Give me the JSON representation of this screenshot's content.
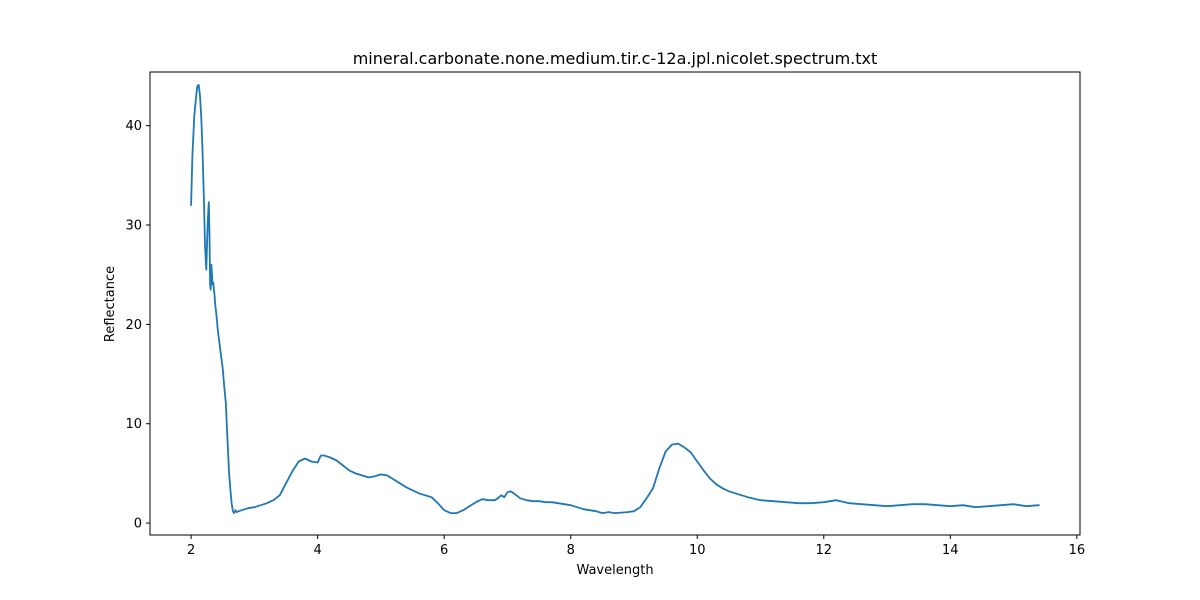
{
  "chart_data": {
    "type": "line",
    "title": "mineral.carbonate.none.medium.tir.c-12a.jpl.nicolet.spectrum.txt",
    "xlabel": "Wavelength",
    "ylabel": "Reflectance",
    "xlim": [
      1.35,
      16.05
    ],
    "ylim": [
      -1.2,
      45.4
    ],
    "x_ticks": [
      2,
      4,
      6,
      8,
      10,
      12,
      14,
      16
    ],
    "x_tick_labels": [
      "2",
      "4",
      "6",
      "8",
      "10",
      "12",
      "14",
      "16"
    ],
    "y_ticks": [
      0,
      10,
      20,
      30,
      40
    ],
    "y_tick_labels": [
      "0",
      "10",
      "20",
      "30",
      "40"
    ],
    "grid": false,
    "line_color": "#1f77b4",
    "series": [
      {
        "x": [
          2.0,
          2.02,
          2.05,
          2.08,
          2.1,
          2.12,
          2.14,
          2.16,
          2.18,
          2.2,
          2.22,
          2.24,
          2.26,
          2.28,
          2.29,
          2.3,
          2.31,
          2.32,
          2.33,
          2.34,
          2.35,
          2.36,
          2.37,
          2.38,
          2.39,
          2.4,
          2.42,
          2.45,
          2.48,
          2.5,
          2.52,
          2.55,
          2.57,
          2.6,
          2.62,
          2.64,
          2.66,
          2.68,
          2.7,
          2.72,
          2.75,
          2.8,
          2.85,
          2.9,
          3.0,
          3.1,
          3.2,
          3.3,
          3.4,
          3.5,
          3.6,
          3.7,
          3.8,
          3.9,
          4.0,
          4.05,
          4.1,
          4.2,
          4.3,
          4.4,
          4.5,
          4.6,
          4.7,
          4.8,
          4.9,
          5.0,
          5.1,
          5.2,
          5.3,
          5.4,
          5.5,
          5.6,
          5.7,
          5.8,
          5.9,
          6.0,
          6.1,
          6.2,
          6.3,
          6.4,
          6.5,
          6.6,
          6.7,
          6.8,
          6.85,
          6.9,
          6.95,
          7.0,
          7.05,
          7.1,
          7.2,
          7.3,
          7.4,
          7.5,
          7.6,
          7.7,
          7.8,
          7.9,
          8.0,
          8.1,
          8.2,
          8.3,
          8.4,
          8.5,
          8.6,
          8.7,
          8.8,
          8.9,
          9.0,
          9.1,
          9.2,
          9.3,
          9.4,
          9.5,
          9.6,
          9.7,
          9.8,
          9.9,
          10.0,
          10.1,
          10.2,
          10.3,
          10.4,
          10.5,
          10.6,
          10.8,
          11.0,
          11.2,
          11.4,
          11.6,
          11.8,
          12.0,
          12.2,
          12.4,
          12.6,
          12.8,
          13.0,
          13.2,
          13.4,
          13.6,
          13.8,
          14.0,
          14.2,
          14.4,
          14.6,
          14.8,
          15.0,
          15.2,
          15.4
        ],
        "y": [
          32.0,
          37.0,
          41.0,
          43.0,
          44.0,
          44.1,
          43.0,
          41.0,
          37.5,
          33.0,
          28.0,
          25.5,
          30.0,
          32.3,
          29.0,
          24.0,
          23.5,
          26.0,
          25.0,
          24.0,
          24.2,
          23.5,
          23.0,
          22.0,
          21.5,
          21.0,
          19.5,
          18.0,
          16.5,
          15.5,
          14.0,
          12.0,
          9.0,
          5.0,
          3.5,
          2.0,
          1.2,
          1.0,
          1.3,
          1.1,
          1.2,
          1.3,
          1.4,
          1.5,
          1.6,
          1.8,
          2.0,
          2.3,
          2.8,
          4.0,
          5.2,
          6.2,
          6.5,
          6.2,
          6.1,
          6.8,
          6.8,
          6.6,
          6.3,
          5.8,
          5.3,
          5.0,
          4.8,
          4.6,
          4.7,
          4.9,
          4.8,
          4.4,
          4.0,
          3.6,
          3.3,
          3.0,
          2.8,
          2.6,
          2.0,
          1.3,
          1.0,
          1.0,
          1.3,
          1.7,
          2.1,
          2.4,
          2.3,
          2.3,
          2.5,
          2.8,
          2.6,
          3.1,
          3.2,
          3.0,
          2.5,
          2.3,
          2.2,
          2.2,
          2.1,
          2.1,
          2.0,
          1.9,
          1.8,
          1.6,
          1.4,
          1.3,
          1.2,
          1.0,
          1.1,
          1.0,
          1.05,
          1.1,
          1.2,
          1.6,
          2.5,
          3.5,
          5.5,
          7.2,
          7.9,
          8.0,
          7.6,
          7.1,
          6.2,
          5.3,
          4.5,
          3.9,
          3.5,
          3.2,
          3.0,
          2.6,
          2.3,
          2.2,
          2.1,
          2.0,
          2.0,
          2.1,
          2.3,
          2.0,
          1.9,
          1.8,
          1.7,
          1.8,
          1.9,
          1.9,
          1.8,
          1.7,
          1.8,
          1.6,
          1.7,
          1.8,
          1.9,
          1.7,
          1.8
        ]
      }
    ]
  }
}
